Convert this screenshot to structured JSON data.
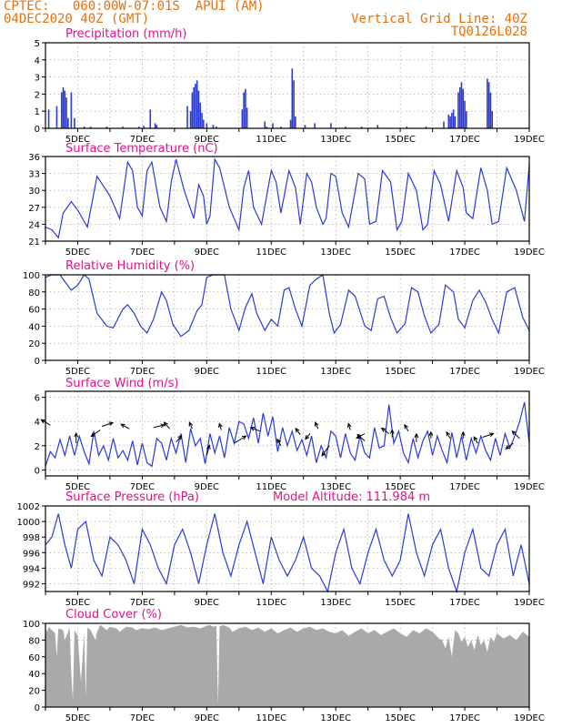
{
  "header": {
    "line1_left": "CPTEC:   060:00W-07:01S  APUI (AM)",
    "line2_left": "04DEC2020 40Z (GMT)",
    "line1_right": "Vertical Grid Line: 40Z",
    "line2_right": "TQ0126L028"
  },
  "colors": {
    "header": "#e8700a",
    "titles": "#e0138c",
    "line": "#2b3bd6",
    "bars": "#2b3bd6",
    "cloud": "#a9a9a9",
    "arrows": "#000000"
  },
  "x_tick_labels": [
    "5DEC",
    "7DEC",
    "9DEC",
    "11DEC",
    "13DEC",
    "15DEC",
    "17DEC",
    "19DEC"
  ],
  "chart_data": [
    {
      "id": "precip",
      "type": "bar",
      "title": "Precipitation (mm/h)",
      "x_range": [
        4.0,
        19.0
      ],
      "ylim": [
        0,
        5
      ],
      "yticks": [
        "0",
        "1",
        "2",
        "3",
        "4",
        "5"
      ],
      "ytick_values": [
        0,
        1,
        2,
        3,
        4,
        5
      ],
      "grid": true,
      "x": [
        4.1,
        4.35,
        4.5,
        4.55,
        4.6,
        4.65,
        4.7,
        4.8,
        4.9,
        5.2,
        5.4,
        5.9,
        6.4,
        6.9,
        7.05,
        7.25,
        7.4,
        7.45,
        8.4,
        8.5,
        8.55,
        8.6,
        8.65,
        8.7,
        8.75,
        8.8,
        8.85,
        8.9,
        9.0,
        9.2,
        9.3,
        10.1,
        10.15,
        10.2,
        10.25,
        10.8,
        10.85,
        11.05,
        11.3,
        11.6,
        11.65,
        11.7,
        11.75,
        12.05,
        12.35,
        12.85,
        13.3,
        13.8,
        14.3,
        15.2,
        15.8,
        16.35,
        16.5,
        16.55,
        16.6,
        16.65,
        16.7,
        16.8,
        16.85,
        16.9,
        16.95,
        17.0,
        17.05,
        17.7,
        17.75,
        17.8,
        17.85
      ],
      "values": [
        1.1,
        1.3,
        2.1,
        2.4,
        2.2,
        1.8,
        0.6,
        2.1,
        0.6,
        0.1,
        0.1,
        0.1,
        0.1,
        0.1,
        0.15,
        1.1,
        0.3,
        0.2,
        1.3,
        1.0,
        2.1,
        2.4,
        2.6,
        2.8,
        2.2,
        1.5,
        0.9,
        0.5,
        0.3,
        0.2,
        0.1,
        1.1,
        2.1,
        2.3,
        1.2,
        0.4,
        0.1,
        0.3,
        0.1,
        0.5,
        3.5,
        2.8,
        0.7,
        0.2,
        0.3,
        0.3,
        0.1,
        0.1,
        0.2,
        0.1,
        0.1,
        0.4,
        0.8,
        0.7,
        0.9,
        1.1,
        0.7,
        2.1,
        2.4,
        2.7,
        2.3,
        1.6,
        1.0,
        2.9,
        2.7,
        2.1,
        1.0
      ]
    },
    {
      "id": "temp",
      "type": "line",
      "title": "Surface Temperature (nC)",
      "x_range": [
        4.0,
        19.0
      ],
      "ylim": [
        21,
        36
      ],
      "yticks": [
        "21",
        "24",
        "27",
        "30",
        "33",
        "36"
      ],
      "ytick_values": [
        21,
        24,
        27,
        30,
        33,
        36
      ],
      "grid": true,
      "x": [
        4.0,
        4.2,
        4.4,
        4.55,
        4.8,
        5.0,
        5.3,
        5.6,
        6.0,
        6.3,
        6.55,
        6.7,
        6.85,
        7.0,
        7.15,
        7.3,
        7.55,
        7.75,
        7.9,
        8.05,
        8.3,
        8.6,
        8.75,
        8.9,
        9.0,
        9.1,
        9.25,
        9.4,
        9.7,
        10.0,
        10.15,
        10.3,
        10.45,
        10.7,
        11.0,
        11.15,
        11.3,
        11.55,
        11.75,
        11.9,
        12.1,
        12.25,
        12.4,
        12.6,
        12.7,
        12.85,
        13.0,
        13.2,
        13.4,
        13.7,
        13.9,
        14.05,
        14.25,
        14.45,
        14.7,
        14.9,
        15.05,
        15.25,
        15.5,
        15.7,
        15.85,
        16.05,
        16.25,
        16.5,
        16.75,
        16.95,
        17.05,
        17.25,
        17.5,
        17.7,
        17.85,
        18.05,
        18.3,
        18.6,
        18.85,
        19.0
      ],
      "values": [
        23.5,
        23.0,
        21.6,
        26.0,
        28.0,
        26.5,
        23.5,
        32.5,
        29.0,
        25.0,
        35.0,
        33.5,
        27.0,
        25.5,
        33.5,
        35.0,
        27.0,
        24.5,
        31.5,
        35.5,
        30.0,
        25.0,
        31.0,
        29.0,
        24.0,
        25.5,
        35.5,
        34.0,
        27.0,
        23.0,
        30.5,
        33.5,
        27.0,
        24.0,
        33.5,
        31.5,
        26.0,
        33.5,
        30.5,
        24.0,
        33.0,
        31.5,
        27.0,
        24.0,
        25.0,
        33.0,
        32.5,
        26.0,
        23.5,
        33.0,
        32.0,
        24.0,
        24.5,
        33.5,
        31.5,
        23.0,
        24.5,
        33.0,
        30.0,
        23.0,
        24.0,
        33.5,
        31.0,
        24.5,
        33.5,
        30.5,
        26.0,
        25.0,
        34.0,
        30.0,
        24.0,
        24.5,
        34.0,
        30.0,
        24.5,
        34.5
      ]
    },
    {
      "id": "rh",
      "type": "line",
      "title": "Relative Humidity (%)",
      "x_range": [
        4.0,
        19.0
      ],
      "ylim": [
        0,
        100
      ],
      "yticks": [
        "0",
        "20",
        "40",
        "60",
        "80",
        "100"
      ],
      "ytick_values": [
        0,
        20,
        40,
        60,
        80,
        100
      ],
      "grid": true,
      "x": [
        4.0,
        4.2,
        4.45,
        4.6,
        4.8,
        5.0,
        5.2,
        5.35,
        5.6,
        5.9,
        6.1,
        6.4,
        6.55,
        6.75,
        6.95,
        7.15,
        7.35,
        7.6,
        7.75,
        7.95,
        8.2,
        8.45,
        8.7,
        8.85,
        9.0,
        9.2,
        9.4,
        9.55,
        9.75,
        10.0,
        10.2,
        10.4,
        10.55,
        10.8,
        11.0,
        11.2,
        11.4,
        11.55,
        11.75,
        11.95,
        12.2,
        12.4,
        12.6,
        12.8,
        12.95,
        13.15,
        13.4,
        13.6,
        13.9,
        14.1,
        14.3,
        14.5,
        14.7,
        14.9,
        15.15,
        15.35,
        15.55,
        15.75,
        15.95,
        16.2,
        16.4,
        16.65,
        16.8,
        17.0,
        17.25,
        17.45,
        17.65,
        17.85,
        18.05,
        18.3,
        18.55,
        18.8,
        19.0
      ],
      "values": [
        97,
        100,
        100,
        92,
        82,
        88,
        100,
        95,
        55,
        40,
        38,
        60,
        65,
        55,
        40,
        32,
        48,
        80,
        70,
        42,
        28,
        35,
        58,
        65,
        97,
        100,
        100,
        100,
        60,
        35,
        62,
        78,
        55,
        35,
        48,
        40,
        82,
        85,
        60,
        40,
        88,
        95,
        100,
        55,
        32,
        42,
        82,
        75,
        40,
        35,
        72,
        75,
        50,
        32,
        43,
        85,
        80,
        52,
        32,
        42,
        88,
        80,
        48,
        38,
        70,
        82,
        68,
        48,
        32,
        80,
        85,
        50,
        35
      ]
    },
    {
      "id": "wind",
      "type": "line",
      "title": "Surface Wind (m/s)",
      "x_range": [
        4.0,
        19.0
      ],
      "ylim": [
        -0.5,
        6.5
      ],
      "yticks": [
        "0",
        "2",
        "4",
        "6"
      ],
      "ytick_values": [
        0,
        2,
        4,
        6
      ],
      "grid": true,
      "x": [
        4.0,
        4.15,
        4.3,
        4.45,
        4.6,
        4.75,
        4.9,
        5.05,
        5.2,
        5.35,
        5.5,
        5.65,
        5.8,
        5.95,
        6.1,
        6.25,
        6.4,
        6.55,
        6.7,
        6.85,
        7.0,
        7.15,
        7.3,
        7.45,
        7.6,
        7.75,
        7.9,
        8.05,
        8.2,
        8.35,
        8.5,
        8.65,
        8.8,
        8.95,
        9.1,
        9.25,
        9.4,
        9.55,
        9.7,
        9.85,
        10.0,
        10.15,
        10.3,
        10.45,
        10.6,
        10.75,
        10.9,
        11.05,
        11.2,
        11.35,
        11.5,
        11.65,
        11.8,
        11.95,
        12.1,
        12.25,
        12.4,
        12.55,
        12.7,
        12.85,
        13.0,
        13.15,
        13.3,
        13.45,
        13.6,
        13.75,
        13.9,
        14.05,
        14.2,
        14.35,
        14.5,
        14.65,
        14.8,
        14.95,
        15.1,
        15.25,
        15.4,
        15.55,
        15.7,
        15.85,
        16.0,
        16.15,
        16.3,
        16.45,
        16.6,
        16.75,
        16.9,
        17.05,
        17.2,
        17.35,
        17.5,
        17.65,
        17.8,
        17.95,
        18.1,
        18.25,
        18.4,
        18.55,
        18.7,
        18.85,
        19.0
      ],
      "values": [
        0.3,
        1.5,
        1.0,
        2.5,
        1.2,
        2.8,
        1.2,
        2.8,
        1.5,
        0.5,
        3.2,
        1.2,
        2.0,
        0.8,
        2.6,
        1.0,
        1.6,
        0.8,
        2.4,
        0.4,
        2.2,
        0.6,
        0.3,
        2.6,
        2.2,
        0.8,
        2.6,
        1.4,
        3.0,
        0.6,
        3.4,
        2.0,
        2.6,
        0.5,
        3.0,
        1.4,
        2.8,
        1.0,
        3.5,
        2.2,
        4.0,
        3.8,
        2.6,
        4.3,
        2.2,
        4.7,
        2.8,
        4.4,
        1.5,
        3.5,
        2.0,
        3.2,
        1.6,
        2.5,
        1.2,
        2.8,
        0.6,
        2.0,
        1.0,
        3.2,
        2.8,
        1.0,
        3.0,
        1.4,
        0.8,
        2.8,
        1.4,
        1.0,
        3.5,
        1.8,
        2.0,
        5.4,
        2.2,
        3.2,
        1.4,
        0.6,
        2.6,
        1.0,
        2.4,
        3.2,
        1.2,
        2.8,
        1.6,
        0.6,
        3.1,
        1.0,
        2.8,
        0.8,
        2.6,
        1.4,
        2.8,
        1.6,
        0.8,
        2.6,
        1.2,
        3.0,
        1.8,
        2.8,
        4.0,
        5.6,
        2.2
      ]
    },
    {
      "id": "pres",
      "type": "line",
      "title": "Surface Pressure (hPa)",
      "annotation": "Model Altitude: 111.984 m",
      "x_range": [
        4.0,
        19.0
      ],
      "ylim": [
        991,
        1002
      ],
      "yticks": [
        "992",
        "994",
        "996",
        "998",
        "1000",
        "1002"
      ],
      "ytick_values": [
        992,
        994,
        996,
        998,
        1000,
        1002
      ],
      "grid": true,
      "x": [
        4.0,
        4.2,
        4.4,
        4.6,
        4.8,
        5.0,
        5.25,
        5.5,
        5.75,
        6.0,
        6.25,
        6.5,
        6.75,
        7.0,
        7.25,
        7.5,
        7.75,
        8.0,
        8.25,
        8.5,
        8.75,
        9.0,
        9.25,
        9.5,
        9.75,
        10.0,
        10.25,
        10.5,
        10.75,
        11.0,
        11.25,
        11.5,
        11.75,
        12.0,
        12.25,
        12.5,
        12.75,
        13.0,
        13.25,
        13.5,
        13.75,
        14.0,
        14.25,
        14.5,
        14.75,
        15.0,
        15.25,
        15.5,
        15.75,
        16.0,
        16.25,
        16.5,
        16.75,
        17.0,
        17.25,
        17.5,
        17.75,
        18.0,
        18.25,
        18.5,
        18.75,
        19.0
      ],
      "values": [
        997,
        998,
        1001,
        997,
        994,
        999,
        1000,
        995,
        993,
        998,
        997,
        995,
        992,
        999,
        997,
        994,
        992,
        997,
        999,
        996,
        992,
        997,
        1001,
        996,
        993,
        997,
        1000,
        996,
        992,
        998,
        995,
        993,
        995,
        998,
        994,
        993,
        991,
        996,
        999,
        994,
        992,
        996,
        999,
        995,
        993,
        995,
        1001,
        996,
        993,
        997,
        999,
        994,
        991,
        996,
        999,
        994,
        993,
        997,
        999,
        993,
        997,
        992
      ]
    },
    {
      "id": "cloud",
      "type": "area",
      "title": "Cloud Cover (%)",
      "x_range": [
        4.0,
        19.0
      ],
      "ylim": [
        0,
        100
      ],
      "yticks": [
        "0",
        "20",
        "40",
        "60",
        "80",
        "100"
      ],
      "ytick_values": [
        0,
        20,
        40,
        60,
        80,
        100
      ],
      "grid": true,
      "x": [
        4.0,
        4.05,
        4.1,
        4.2,
        4.3,
        4.35,
        4.4,
        4.55,
        4.6,
        4.75,
        4.8,
        4.85,
        4.9,
        5.0,
        5.1,
        5.2,
        5.25,
        5.3,
        5.4,
        5.55,
        5.6,
        5.7,
        5.9,
        6.0,
        6.2,
        6.3,
        6.5,
        6.7,
        6.8,
        7.0,
        7.2,
        7.4,
        7.6,
        7.8,
        8.0,
        8.2,
        8.4,
        8.6,
        8.8,
        9.0,
        9.1,
        9.2,
        9.3,
        9.35,
        9.4,
        9.5,
        9.7,
        9.8,
        10.0,
        10.2,
        10.4,
        10.6,
        10.8,
        11.0,
        11.2,
        11.4,
        11.6,
        11.8,
        12.0,
        12.2,
        12.4,
        12.6,
        12.8,
        13.0,
        13.2,
        13.4,
        13.6,
        13.8,
        14.0,
        14.2,
        14.4,
        14.6,
        14.8,
        15.0,
        15.2,
        15.4,
        15.6,
        15.8,
        16.0,
        16.2,
        16.3,
        16.4,
        16.5,
        16.6,
        16.7,
        16.8,
        16.9,
        17.0,
        17.1,
        17.2,
        17.3,
        17.4,
        17.5,
        17.6,
        17.7,
        17.8,
        17.9,
        18.0,
        18.2,
        18.4,
        18.6,
        18.8,
        19.0
      ],
      "values": [
        95,
        90,
        96,
        92,
        88,
        60,
        94,
        92,
        80,
        95,
        40,
        8,
        92,
        85,
        30,
        88,
        12,
        95,
        92,
        80,
        90,
        98,
        92,
        96,
        94,
        90,
        96,
        95,
        92,
        94,
        93,
        95,
        92,
        94,
        96,
        98,
        95,
        96,
        94,
        97,
        98,
        96,
        97,
        2,
        96,
        98,
        95,
        90,
        94,
        96,
        92,
        95,
        90,
        94,
        88,
        92,
        95,
        90,
        94,
        96,
        92,
        94,
        90,
        88,
        92,
        85,
        90,
        94,
        88,
        92,
        86,
        90,
        94,
        88,
        84,
        92,
        88,
        94,
        90,
        82,
        80,
        70,
        84,
        60,
        92,
        88,
        78,
        84,
        72,
        80,
        68,
        86,
        74,
        80,
        66,
        84,
        78,
        88,
        82,
        86,
        80,
        90,
        84
      ]
    }
  ],
  "wind_vectors": [
    {
      "x": 4.15,
      "y": 3.7,
      "dx": -10,
      "dy": -6
    },
    {
      "x": 4.95,
      "y": 2.2,
      "dx": 0,
      "dy": -11
    },
    {
      "x": 5.7,
      "y": 3.3,
      "dx": -10,
      "dy": 7
    },
    {
      "x": 5.75,
      "y": 3.6,
      "dx": 12,
      "dy": -4
    },
    {
      "x": 6.6,
      "y": 3.4,
      "dx": -9,
      "dy": -5
    },
    {
      "x": 7.35,
      "y": 3.5,
      "dx": 12,
      "dy": -3
    },
    {
      "x": 7.85,
      "y": 3.4,
      "dx": -6,
      "dy": -7
    },
    {
      "x": 8.05,
      "y": 2.3,
      "dx": 6,
      "dy": -7
    },
    {
      "x": 8.55,
      "y": 3.4,
      "dx": -3,
      "dy": -7
    },
    {
      "x": 9.0,
      "y": 1.2,
      "dx": 3,
      "dy": -11
    },
    {
      "x": 9.45,
      "y": 3.3,
      "dx": -2,
      "dy": -7
    },
    {
      "x": 9.85,
      "y": 2.2,
      "dx": 13,
      "dy": -8
    },
    {
      "x": 10.65,
      "y": 3.2,
      "dx": -10,
      "dy": -4
    },
    {
      "x": 11.3,
      "y": 2.0,
      "dx": -4,
      "dy": -7
    },
    {
      "x": 11.9,
      "y": 2.9,
      "dx": -5,
      "dy": -7
    },
    {
      "x": 12.2,
      "y": 3.0,
      "dx": -5,
      "dy": 6
    },
    {
      "x": 12.45,
      "y": 3.4,
      "dx": -3,
      "dy": -7
    },
    {
      "x": 12.8,
      "y": 2.0,
      "dx": -8,
      "dy": 11
    },
    {
      "x": 13.45,
      "y": 3.3,
      "dx": -2,
      "dy": -7
    },
    {
      "x": 13.9,
      "y": 2.4,
      "dx": -8,
      "dy": -7
    },
    {
      "x": 13.9,
      "y": 3.0,
      "dx": -9,
      "dy": 5
    },
    {
      "x": 14.65,
      "y": 3.0,
      "dx": -8,
      "dy": -6
    },
    {
      "x": 14.75,
      "y": 2.7,
      "dx": 0,
      "dy": -8
    },
    {
      "x": 15.25,
      "y": 3.2,
      "dx": -4,
      "dy": -7
    },
    {
      "x": 15.5,
      "y": 2.3,
      "dx": 0,
      "dy": -9
    },
    {
      "x": 15.95,
      "y": 2.6,
      "dx": 0,
      "dy": -7
    },
    {
      "x": 16.55,
      "y": 2.6,
      "dx": -4,
      "dy": -7
    },
    {
      "x": 16.95,
      "y": 2.6,
      "dx": 0,
      "dy": -7
    },
    {
      "x": 17.4,
      "y": 2.2,
      "dx": -4,
      "dy": -7
    },
    {
      "x": 17.55,
      "y": 2.7,
      "dx": 12,
      "dy": -4
    },
    {
      "x": 18.5,
      "y": 2.2,
      "dx": -8,
      "dy": 6
    },
    {
      "x": 18.7,
      "y": 2.6,
      "dx": -8,
      "dy": -8
    }
  ]
}
